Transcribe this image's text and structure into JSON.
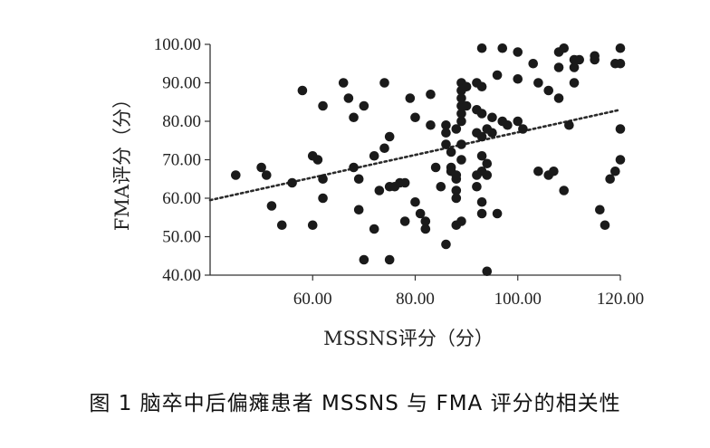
{
  "caption": "图 1   脑卒中后偏瘫患者 MSSNS 与 FMA 评分的相关性",
  "chart_data": {
    "type": "scatter",
    "title": "",
    "xlabel": "MSSNS评分（分）",
    "ylabel": "FMA评分（分）",
    "xlim": [
      40,
      120
    ],
    "ylim": [
      40,
      100
    ],
    "x_ticks": [
      "60.00",
      "80.00",
      "100.00",
      "120.00"
    ],
    "y_ticks": [
      "40.00",
      "50.00",
      "60.00",
      "70.00",
      "80.00",
      "90.00",
      "100.00"
    ],
    "x_tick_values": [
      60,
      80,
      100,
      120
    ],
    "y_tick_values": [
      40,
      50,
      60,
      70,
      80,
      90,
      100
    ],
    "grid": false,
    "legend": "none",
    "trendline": {
      "style": "dotted",
      "x": [
        40,
        120
      ],
      "y": [
        59.5,
        83
      ]
    },
    "series": [
      {
        "marker_color": "#1a1a1a",
        "points": [
          [
            45,
            66
          ],
          [
            50,
            68
          ],
          [
            51,
            66
          ],
          [
            52,
            58
          ],
          [
            54,
            53
          ],
          [
            56,
            64
          ],
          [
            58,
            88
          ],
          [
            60,
            71
          ],
          [
            60,
            53
          ],
          [
            61,
            70
          ],
          [
            62,
            84
          ],
          [
            62,
            65
          ],
          [
            62,
            60
          ],
          [
            66,
            90
          ],
          [
            67,
            86
          ],
          [
            68,
            81
          ],
          [
            68,
            68
          ],
          [
            69,
            57
          ],
          [
            69,
            65
          ],
          [
            70,
            84
          ],
          [
            70,
            44
          ],
          [
            72,
            52
          ],
          [
            72,
            71
          ],
          [
            73,
            62
          ],
          [
            74,
            90
          ],
          [
            74,
            73
          ],
          [
            75,
            76
          ],
          [
            75,
            63
          ],
          [
            75,
            44
          ],
          [
            76,
            63
          ],
          [
            77,
            64
          ],
          [
            78,
            64
          ],
          [
            78,
            54
          ],
          [
            79,
            86
          ],
          [
            80,
            81
          ],
          [
            80,
            59
          ],
          [
            81,
            56
          ],
          [
            82,
            54
          ],
          [
            82,
            52
          ],
          [
            83,
            87
          ],
          [
            83,
            79
          ],
          [
            84,
            68
          ],
          [
            85,
            63
          ],
          [
            86,
            48
          ],
          [
            86,
            74
          ],
          [
            86,
            77
          ],
          [
            86,
            79
          ],
          [
            87,
            67
          ],
          [
            87,
            72
          ],
          [
            87,
            68
          ],
          [
            88,
            78
          ],
          [
            88,
            65
          ],
          [
            88,
            66
          ],
          [
            88,
            60
          ],
          [
            88,
            62
          ],
          [
            88,
            53
          ],
          [
            89,
            80
          ],
          [
            89,
            82
          ],
          [
            89,
            84
          ],
          [
            89,
            86
          ],
          [
            89,
            88
          ],
          [
            89,
            90
          ],
          [
            89,
            70
          ],
          [
            89,
            74
          ],
          [
            89,
            54
          ],
          [
            90,
            89
          ],
          [
            90,
            84
          ],
          [
            92,
            83
          ],
          [
            92,
            90
          ],
          [
            92,
            77
          ],
          [
            92,
            63
          ],
          [
            92,
            66
          ],
          [
            93,
            99
          ],
          [
            93,
            89
          ],
          [
            93,
            82
          ],
          [
            93,
            76
          ],
          [
            93,
            71
          ],
          [
            93,
            67
          ],
          [
            93,
            59
          ],
          [
            93,
            56
          ],
          [
            94,
            78
          ],
          [
            94,
            69
          ],
          [
            94,
            66
          ],
          [
            94,
            41
          ],
          [
            95,
            81
          ],
          [
            95,
            77
          ],
          [
            96,
            92
          ],
          [
            96,
            56
          ],
          [
            97,
            99
          ],
          [
            97,
            80
          ],
          [
            98,
            79
          ],
          [
            100,
            98
          ],
          [
            100,
            91
          ],
          [
            100,
            80
          ],
          [
            101,
            78
          ],
          [
            103,
            95
          ],
          [
            104,
            90
          ],
          [
            104,
            67
          ],
          [
            106,
            88
          ],
          [
            106,
            66
          ],
          [
            107,
            67
          ],
          [
            108,
            98
          ],
          [
            108,
            94
          ],
          [
            108,
            86
          ],
          [
            109,
            99
          ],
          [
            109,
            62
          ],
          [
            110,
            79
          ],
          [
            111,
            96
          ],
          [
            111,
            94
          ],
          [
            111,
            90
          ],
          [
            112,
            96
          ],
          [
            115,
            97
          ],
          [
            115,
            96
          ],
          [
            116,
            57
          ],
          [
            117,
            53
          ],
          [
            118,
            65
          ],
          [
            119,
            95
          ],
          [
            119,
            67
          ],
          [
            120,
            99
          ],
          [
            120,
            95
          ],
          [
            120,
            78
          ],
          [
            120,
            70
          ]
        ]
      }
    ]
  }
}
